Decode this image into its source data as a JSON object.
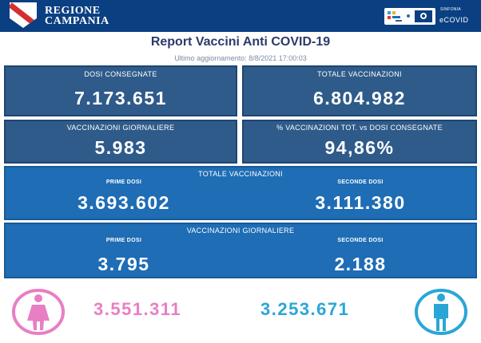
{
  "header": {
    "region_line1": "REGIONE",
    "region_line2": "CAMPANIA",
    "platform_small": "SINFONIA",
    "platform_name": "eCOVID"
  },
  "report": {
    "title": "Report Vaccini Anti COVID-19",
    "last_update": "Ultimo aggiornamento: 8/8/2021  17:00:03"
  },
  "cards": {
    "dosi_consegnate": {
      "label": "DOSI  CONSEGNATE",
      "value": "7.173.651"
    },
    "totale_vaccinazioni": {
      "label": "TOTALE VACCINAZIONI",
      "value": "6.804.982"
    },
    "vaccinazioni_giornaliere": {
      "label": "VACCINAZIONI GIORNALIERE",
      "value": "5.983"
    },
    "percentuale": {
      "label": "% VACCINAZIONI TOT. vs DOSI CONSEGNATE",
      "value": "94,86%"
    }
  },
  "totale_panel": {
    "title": "TOTALE VACCINAZIONI",
    "prime_label": "PRIME DOSI",
    "prime_value": "3.693.602",
    "seconde_label": "SECONDE DOSI",
    "seconde_value": "3.111.380"
  },
  "giornaliere_panel": {
    "title": "VACCINAZIONI GIORNALIERE",
    "prime_label": "PRIME DOSI",
    "prime_value": "3.795",
    "seconde_label": "SECONDE DOSI",
    "seconde_value": "2.188"
  },
  "gender": {
    "female_value": "3.551.311",
    "male_value": "3.253.671",
    "female_color": "#e87fc4",
    "male_color": "#2aa6d6",
    "female_icon": "female-icon",
    "male_icon": "male-icon"
  },
  "colors": {
    "header_bg": "#0a3f82",
    "card_bg": "#2f5b8a",
    "panel_bg": "#1e6db5"
  }
}
